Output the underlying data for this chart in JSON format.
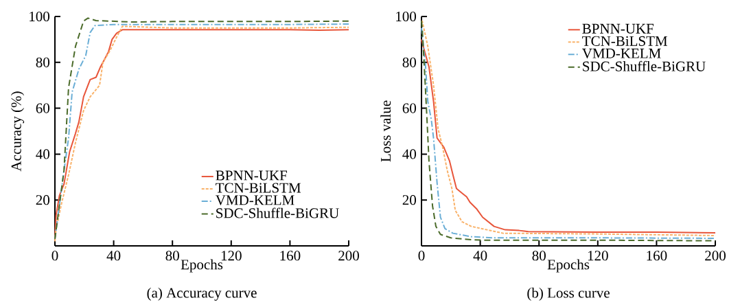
{
  "chart_data": [
    {
      "type": "line",
      "xlabel": "Epochs",
      "ylabel": "Accuracy (%)",
      "annotations": [
        "(a) Accuracy curve"
      ],
      "xlim": [
        0,
        200
      ],
      "ylim": [
        0,
        100
      ],
      "xticks": [
        0,
        40,
        80,
        120,
        160,
        200
      ],
      "yticks": [
        20,
        40,
        60,
        80,
        100
      ],
      "grid": false,
      "legend": "bottom right",
      "marker": "none",
      "series": [
        {
          "name": "BPNN-UKF",
          "color": "#e8553a",
          "line_style": "solid",
          "x": [
            0,
            0.8,
            3.1,
            6.2,
            10,
            14,
            16.3,
            19.5,
            22.5,
            24,
            28,
            31,
            33.5,
            36.5,
            38.9,
            42,
            45.9,
            80,
            120,
            160,
            180,
            200
          ],
          "values": [
            3,
            13.5,
            22,
            27,
            41,
            49,
            54,
            65,
            70,
            72.5,
            73.5,
            78,
            81,
            84.7,
            90,
            92.7,
            94.2,
            94.2,
            94.2,
            94.2,
            94,
            94.2
          ]
        },
        {
          "name": "TCN-BiLSTM",
          "color": "#f9b26a",
          "line_style": "dotted",
          "x": [
            0,
            0.8,
            4.7,
            9.3,
            14,
            19.5,
            24,
            30.4,
            32.7,
            37.4,
            42,
            45.9,
            80,
            120,
            160,
            200
          ],
          "values": [
            2,
            7.5,
            19,
            31,
            45,
            59,
            65,
            70,
            80,
            85,
            91,
            95.7,
            95,
            95,
            95,
            95.3
          ]
        },
        {
          "name": "VMD-KELM",
          "color": "#6aaed6",
          "line_style": "dashdot",
          "x": [
            0,
            6.2,
            9.3,
            11.7,
            16.3,
            21,
            24,
            27.2,
            40,
            80,
            120,
            160,
            200
          ],
          "values": [
            3,
            33,
            47,
            67,
            77,
            83,
            93,
            96,
            96.5,
            96.5,
            96.5,
            96.5,
            96.7
          ]
        },
        {
          "name": "SDC-Shuffle-BiGRU",
          "color": "#4b6b2a",
          "line_style": "dashed",
          "x": [
            0,
            6.2,
            9.3,
            14,
            19.5,
            22.5,
            28,
            53,
            80,
            120,
            160,
            200
          ],
          "values": [
            3,
            33,
            69,
            87,
            98,
            99.3,
            98.2,
            97.6,
            97.8,
            97.8,
            97.8,
            98
          ]
        }
      ]
    },
    {
      "type": "line",
      "xlabel": "Epochs",
      "ylabel": "Loss value",
      "annotations": [
        "(b) Loss curve"
      ],
      "xlim": [
        0,
        200
      ],
      "ylim": [
        0,
        100
      ],
      "xticks": [
        0,
        40,
        80,
        120,
        160,
        200
      ],
      "yticks": [
        20,
        40,
        60,
        80,
        100
      ],
      "grid": false,
      "legend": "top right",
      "marker": "none",
      "series": [
        {
          "name": "BPNN-UKF",
          "color": "#e8553a",
          "line_style": "solid",
          "x": [
            0,
            1.2,
            5.1,
            8.2,
            10.6,
            12.9,
            15.2,
            19.1,
            21.4,
            23.8,
            27.6,
            30.7,
            33,
            37.7,
            41.6,
            49.4,
            57,
            66.5,
            72.7,
            120,
            160,
            200
          ],
          "values": [
            90,
            87,
            78,
            63,
            47,
            45,
            43,
            37,
            31,
            25,
            23,
            21.4,
            19,
            16,
            12.5,
            8.5,
            7,
            6.7,
            6.2,
            6,
            6,
            5.7
          ]
        },
        {
          "name": "TCN-BiLSTM",
          "color": "#f9b26a",
          "line_style": "dotted",
          "x": [
            0,
            0.5,
            4.3,
            8.2,
            11.3,
            14.4,
            17.5,
            20.7,
            23,
            27.6,
            33.9,
            44.7,
            55.6,
            120,
            200
          ],
          "values": [
            98,
            98,
            87,
            70,
            51,
            43,
            33,
            25,
            15.5,
            10.5,
            8.5,
            7,
            5.5,
            5.2,
            4.5
          ]
        },
        {
          "name": "VMD-KELM",
          "color": "#6aaed6",
          "line_style": "dashdot",
          "x": [
            0,
            0.5,
            2.8,
            4.3,
            6.7,
            8.2,
            10.6,
            12.9,
            16,
            21.4,
            33.9,
            49.4,
            120,
            200
          ],
          "values": [
            95,
            92,
            78,
            63,
            55,
            47,
            27.5,
            12.5,
            7.5,
            5.5,
            4,
            3.5,
            3.5,
            3.3
          ]
        },
        {
          "name": "SDC-Shuffle-BiGRU",
          "color": "#4b6b2a",
          "line_style": "dashed",
          "x": [
            0,
            0.5,
            2,
            3.6,
            5.1,
            7.5,
            9.8,
            12.9,
            19.9,
            33.9,
            41.6,
            120,
            200
          ],
          "values": [
            98,
            95,
            77,
            57,
            37,
            17.5,
            8.5,
            5,
            3.5,
            2.7,
            2.5,
            2.5,
            2.2
          ]
        }
      ]
    }
  ]
}
